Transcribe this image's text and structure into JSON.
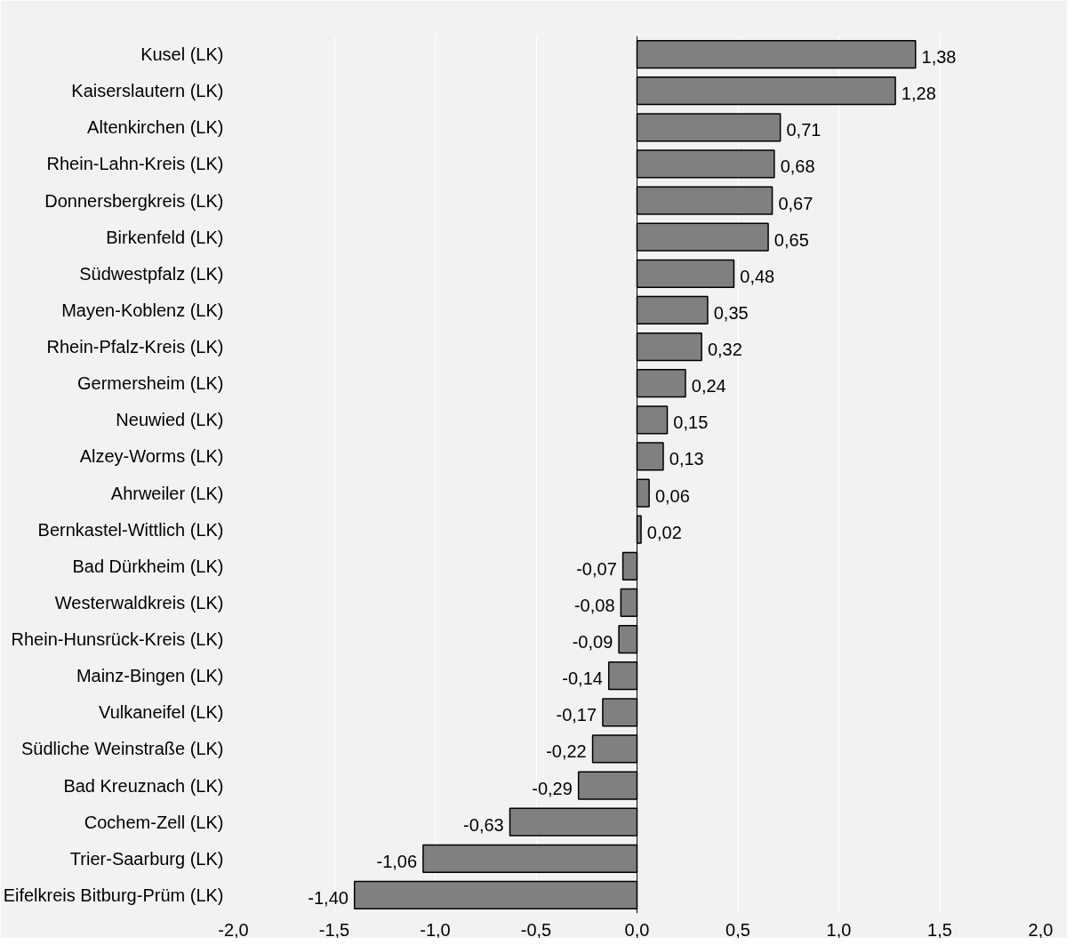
{
  "chart_data": {
    "type": "bar",
    "orientation": "horizontal",
    "categories": [
      "Kusel (LK)",
      "Kaiserslautern (LK)",
      "Altenkirchen (LK)",
      "Rhein-Lahn-Kreis (LK)",
      "Donnersbergkreis (LK)",
      "Birkenfeld (LK)",
      "Südwestpfalz (LK)",
      "Mayen-Koblenz (LK)",
      "Rhein-Pfalz-Kreis (LK)",
      "Germersheim (LK)",
      "Neuwied (LK)",
      "Alzey-Worms (LK)",
      "Ahrweiler (LK)",
      "Bernkastel-Wittlich (LK)",
      "Bad Dürkheim (LK)",
      "Westerwaldkreis (LK)",
      "Rhein-Hunsrück-Kreis (LK)",
      "Mainz-Bingen (LK)",
      "Vulkaneifel (LK)",
      "Südliche Weinstraße (LK)",
      "Bad Kreuznach (LK)",
      "Cochem-Zell (LK)",
      "Trier-Saarburg (LK)",
      "Eifelkreis Bitburg-Prüm (LK)"
    ],
    "values": [
      1.38,
      1.28,
      0.71,
      0.68,
      0.67,
      0.65,
      0.48,
      0.35,
      0.32,
      0.24,
      0.15,
      0.13,
      0.06,
      0.02,
      -0.07,
      -0.08,
      -0.09,
      -0.14,
      -0.17,
      -0.22,
      -0.29,
      -0.63,
      -1.06,
      -1.4
    ],
    "value_labels": [
      "1,38",
      "1,28",
      "0,71",
      "0,68",
      "0,67",
      "0,65",
      "0,48",
      "0,35",
      "0,32",
      "0,24",
      "0,15",
      "0,13",
      "0,06",
      "0,02",
      "-0,07",
      "-0,08",
      "-0,09",
      "-0,14",
      "-0,17",
      "-0,22",
      "-0,29",
      "-0,63",
      "-1,06",
      "-1,40"
    ],
    "color": "#808080",
    "xlim": [
      -2.0,
      2.0
    ],
    "xticks": [
      {
        "value": -2.0,
        "label": "-2,0"
      },
      {
        "value": -1.5,
        "label": "-1,5"
      },
      {
        "value": -1.0,
        "label": "-1,0"
      },
      {
        "value": -0.5,
        "label": "-0,5"
      },
      {
        "value": 0.0,
        "label": "0,0"
      },
      {
        "value": 0.5,
        "label": "0,5"
      },
      {
        "value": 1.0,
        "label": "1,0"
      },
      {
        "value": 1.5,
        "label": "1,5"
      },
      {
        "value": 2.0,
        "label": "2,0"
      }
    ],
    "grid": "x"
  }
}
